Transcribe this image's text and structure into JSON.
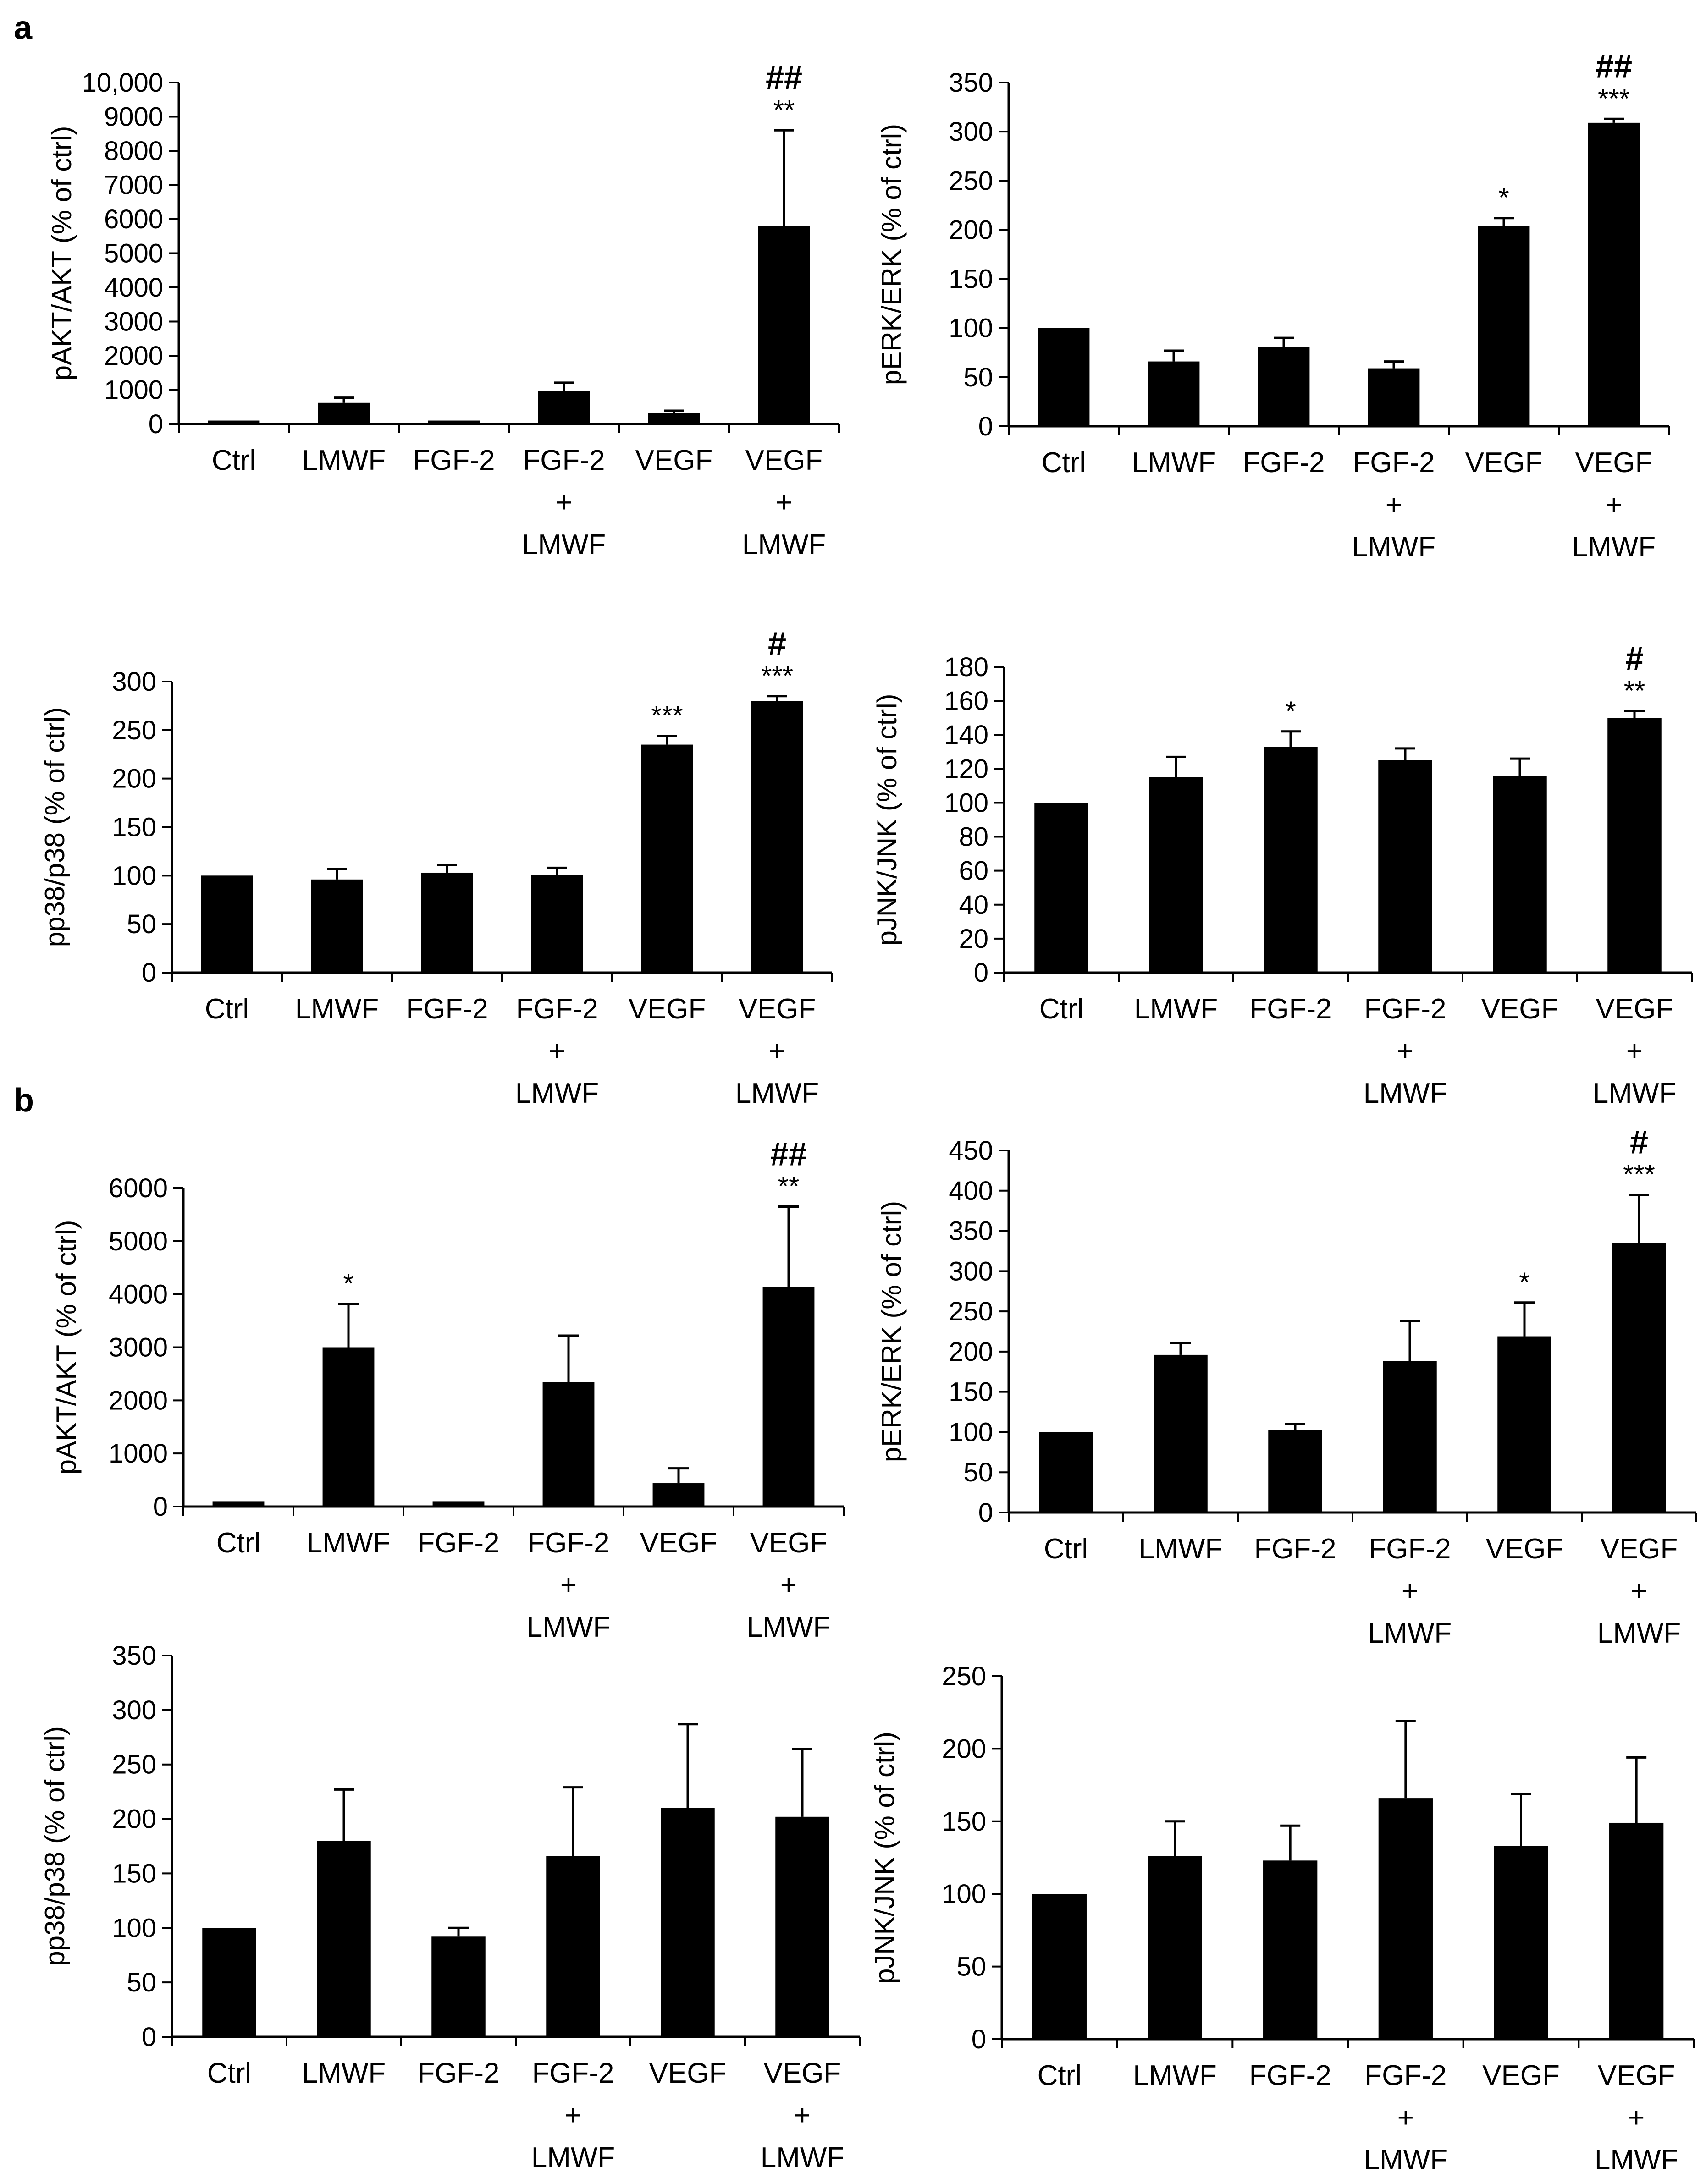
{
  "figure": {
    "panel_labels": [
      "a",
      "b"
    ]
  },
  "style": {
    "bar_color": "#000000",
    "axis_color": "#000000",
    "background": "#ffffff"
  },
  "chart_data": [
    {
      "type": "bar",
      "panel": "a",
      "title": "",
      "xlabel": "",
      "ylabel": "pAKT/AKT (% of ctrl)",
      "categories": [
        [
          "Ctrl"
        ],
        [
          "LMWF"
        ],
        [
          "FGF-2"
        ],
        [
          "FGF-2",
          "+",
          "LMWF"
        ],
        [
          "VEGF"
        ],
        [
          "VEGF",
          "+",
          "LMWF"
        ]
      ],
      "values": [
        100,
        620,
        100,
        960,
        330,
        5800
      ],
      "errors": [
        0,
        150,
        0,
        250,
        60,
        2800
      ],
      "annotations": [
        [
          "",
          ""
        ],
        [
          "",
          ""
        ],
        [
          "",
          ""
        ],
        [
          "",
          ""
        ],
        [
          "",
          ""
        ],
        [
          "**",
          "##"
        ]
      ],
      "ylim": [
        0,
        10000
      ],
      "yticks": [
        0,
        1000,
        2000,
        3000,
        4000,
        5000,
        6000,
        7000,
        8000,
        9000,
        10000
      ],
      "ytick_labels": [
        "0",
        "1000",
        "2000",
        "3000",
        "4000",
        "5000",
        "6000",
        "7000",
        "8000",
        "9000",
        "10,000"
      ]
    },
    {
      "type": "bar",
      "panel": "a",
      "title": "",
      "xlabel": "",
      "ylabel": "pERK/ERK (% of ctrl)",
      "categories": [
        [
          "Ctrl"
        ],
        [
          "LMWF"
        ],
        [
          "FGF-2"
        ],
        [
          "FGF-2",
          "+",
          "LMWF"
        ],
        [
          "VEGF"
        ],
        [
          "VEGF",
          "+",
          "LMWF"
        ]
      ],
      "values": [
        100,
        66,
        81,
        59,
        204,
        309
      ],
      "errors": [
        0,
        11,
        9,
        7,
        8,
        4
      ],
      "annotations": [
        [
          "",
          ""
        ],
        [
          "",
          ""
        ],
        [
          "",
          ""
        ],
        [
          "",
          ""
        ],
        [
          "*",
          ""
        ],
        [
          "***",
          "##"
        ]
      ],
      "ylim": [
        0,
        350
      ],
      "yticks": [
        0,
        50,
        100,
        150,
        200,
        250,
        300,
        350
      ],
      "ytick_labels": [
        "0",
        "50",
        "100",
        "150",
        "200",
        "250",
        "300",
        "350"
      ]
    },
    {
      "type": "bar",
      "panel": "a",
      "title": "",
      "xlabel": "",
      "ylabel": "pp38/p38 (% of ctrl)",
      "categories": [
        [
          "Ctrl"
        ],
        [
          "LMWF"
        ],
        [
          "FGF-2"
        ],
        [
          "FGF-2",
          "+",
          "LMWF"
        ],
        [
          "VEGF"
        ],
        [
          "VEGF",
          "+",
          "LMWF"
        ]
      ],
      "values": [
        100,
        96,
        103,
        101,
        235,
        280
      ],
      "errors": [
        0,
        11,
        8,
        7,
        9,
        5
      ],
      "annotations": [
        [
          "",
          ""
        ],
        [
          "",
          ""
        ],
        [
          "",
          ""
        ],
        [
          "",
          ""
        ],
        [
          "***",
          ""
        ],
        [
          "***",
          "#"
        ]
      ],
      "ylim": [
        0,
        300
      ],
      "yticks": [
        0,
        50,
        100,
        150,
        200,
        250,
        300
      ],
      "ytick_labels": [
        "0",
        "50",
        "100",
        "150",
        "200",
        "250",
        "300"
      ]
    },
    {
      "type": "bar",
      "panel": "a",
      "title": "",
      "xlabel": "",
      "ylabel": "pJNK/JNK (% of ctrl)",
      "categories": [
        [
          "Ctrl"
        ],
        [
          "LMWF"
        ],
        [
          "FGF-2"
        ],
        [
          "FGF-2",
          "+",
          "LMWF"
        ],
        [
          "VEGF"
        ],
        [
          "VEGF",
          "+",
          "LMWF"
        ]
      ],
      "values": [
        100,
        115,
        133,
        125,
        116,
        150
      ],
      "errors": [
        0,
        12,
        9,
        7,
        10,
        4
      ],
      "annotations": [
        [
          "",
          ""
        ],
        [
          "",
          ""
        ],
        [
          "*",
          ""
        ],
        [
          "",
          ""
        ],
        [
          "",
          ""
        ],
        [
          "**",
          "#"
        ]
      ],
      "ylim": [
        0,
        180
      ],
      "yticks": [
        0,
        20,
        40,
        60,
        80,
        100,
        120,
        140,
        160,
        180
      ],
      "ytick_labels": [
        "0",
        "20",
        "40",
        "60",
        "80",
        "100",
        "120",
        "140",
        "160",
        "180"
      ]
    },
    {
      "type": "bar",
      "panel": "b",
      "title": "",
      "xlabel": "",
      "ylabel": "pAKT/AKT (% of ctrl)",
      "categories": [
        [
          "Ctrl"
        ],
        [
          "LMWF"
        ],
        [
          "FGF-2"
        ],
        [
          "FGF-2",
          "+",
          "LMWF"
        ],
        [
          "VEGF"
        ],
        [
          "VEGF",
          "+",
          "LMWF"
        ]
      ],
      "values": [
        100,
        3000,
        100,
        2340,
        440,
        4130
      ],
      "errors": [
        0,
        820,
        0,
        880,
        280,
        1520
      ],
      "annotations": [
        [
          "",
          ""
        ],
        [
          "*",
          ""
        ],
        [
          "",
          ""
        ],
        [
          "",
          ""
        ],
        [
          "",
          ""
        ],
        [
          "**",
          "##"
        ]
      ],
      "ylim": [
        0,
        6000
      ],
      "yticks": [
        0,
        1000,
        2000,
        3000,
        4000,
        5000,
        6000
      ],
      "ytick_labels": [
        "0",
        "1000",
        "2000",
        "3000",
        "4000",
        "5000",
        "6000"
      ]
    },
    {
      "type": "bar",
      "panel": "b",
      "title": "",
      "xlabel": "",
      "ylabel": "pERK/ERK (% of ctrl)",
      "categories": [
        [
          "Ctrl"
        ],
        [
          "LMWF"
        ],
        [
          "FGF-2"
        ],
        [
          "FGF-2",
          "+",
          "LMWF"
        ],
        [
          "VEGF"
        ],
        [
          "VEGF",
          "+",
          "LMWF"
        ]
      ],
      "values": [
        100,
        196,
        102,
        188,
        219,
        335
      ],
      "errors": [
        0,
        15,
        8,
        50,
        42,
        60
      ],
      "annotations": [
        [
          "",
          ""
        ],
        [
          "",
          ""
        ],
        [
          "",
          ""
        ],
        [
          "",
          ""
        ],
        [
          "*",
          ""
        ],
        [
          "***",
          "#"
        ]
      ],
      "ylim": [
        0,
        450
      ],
      "yticks": [
        0,
        50,
        100,
        150,
        200,
        250,
        300,
        350,
        400,
        450
      ],
      "ytick_labels": [
        "0",
        "50",
        "100",
        "150",
        "200",
        "250",
        "300",
        "350",
        "400",
        "450"
      ]
    },
    {
      "type": "bar",
      "panel": "b",
      "title": "",
      "xlabel": "",
      "ylabel": "pp38/p38 (% of ctrl)",
      "categories": [
        [
          "Ctrl"
        ],
        [
          "LMWF"
        ],
        [
          "FGF-2"
        ],
        [
          "FGF-2",
          "+",
          "LMWF"
        ],
        [
          "VEGF"
        ],
        [
          "VEGF",
          "+",
          "LMWF"
        ]
      ],
      "values": [
        100,
        180,
        92,
        166,
        210,
        202
      ],
      "errors": [
        0,
        47,
        8,
        63,
        77,
        62
      ],
      "annotations": [
        [
          "",
          ""
        ],
        [
          "",
          ""
        ],
        [
          "",
          ""
        ],
        [
          "",
          ""
        ],
        [
          "",
          ""
        ],
        [
          "",
          ""
        ]
      ],
      "ylim": [
        0,
        350
      ],
      "yticks": [
        0,
        50,
        100,
        150,
        200,
        250,
        300,
        350
      ],
      "ytick_labels": [
        "0",
        "50",
        "100",
        "150",
        "200",
        "250",
        "300",
        "350"
      ]
    },
    {
      "type": "bar",
      "panel": "b",
      "title": "",
      "xlabel": "",
      "ylabel": "pJNK/JNK (% of ctrl)",
      "categories": [
        [
          "Ctrl"
        ],
        [
          "LMWF"
        ],
        [
          "FGF-2"
        ],
        [
          "FGF-2",
          "+",
          "LMWF"
        ],
        [
          "VEGF"
        ],
        [
          "VEGF",
          "+",
          "LMWF"
        ]
      ],
      "values": [
        100,
        126,
        123,
        166,
        133,
        149
      ],
      "errors": [
        0,
        24,
        24,
        53,
        36,
        45
      ],
      "annotations": [
        [
          "",
          ""
        ],
        [
          "",
          ""
        ],
        [
          "",
          ""
        ],
        [
          "",
          ""
        ],
        [
          "",
          ""
        ],
        [
          "",
          ""
        ]
      ],
      "ylim": [
        0,
        250
      ],
      "yticks": [
        0,
        50,
        100,
        150,
        200,
        250
      ],
      "ytick_labels": [
        "0",
        "50",
        "100",
        "150",
        "200",
        "250"
      ]
    }
  ]
}
